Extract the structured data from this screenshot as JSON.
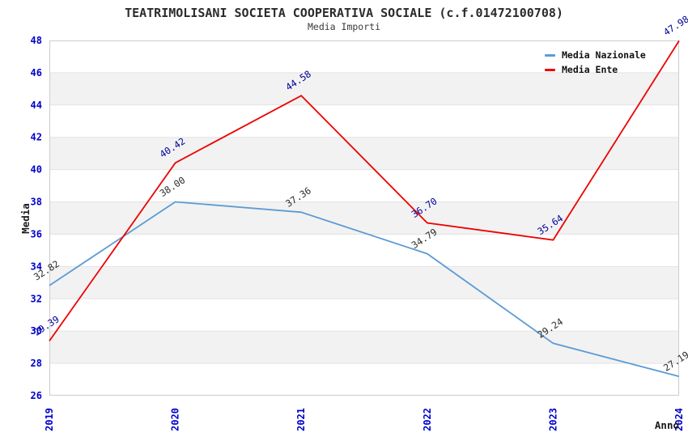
{
  "chart_data": {
    "type": "line",
    "title": "TEATRIMOLISANI SOCIETA COOPERATIVA SOCIALE (c.f.01472100708)",
    "subtitle": "Media Importi",
    "xlabel": "Anno",
    "ylabel": "Media",
    "x": [
      "2019",
      "2020",
      "2021",
      "2022",
      "2023",
      "2024"
    ],
    "ylim": [
      26,
      48
    ],
    "ytick_step": 2,
    "yticks": [
      26,
      28,
      30,
      32,
      34,
      36,
      38,
      40,
      42,
      44,
      46,
      48
    ],
    "grid": true,
    "legend_position": "top-right",
    "band_colors": [
      "#ffffff",
      "#f2f2f2"
    ],
    "grid_color": "#e3e3e3",
    "border_color": "#cccccc",
    "axis_tick_color": "#0000cc",
    "series": [
      {
        "name": "Media Nazionale",
        "color": "#5b9bd5",
        "label_color": "#2b2b2b",
        "values": [
          32.82,
          38.0,
          37.36,
          34.79,
          29.24,
          27.19
        ]
      },
      {
        "name": "Media Ente",
        "color": "#ee0000",
        "label_color": "#000099",
        "values": [
          29.39,
          40.42,
          44.58,
          36.7,
          35.64,
          47.98
        ]
      }
    ]
  }
}
